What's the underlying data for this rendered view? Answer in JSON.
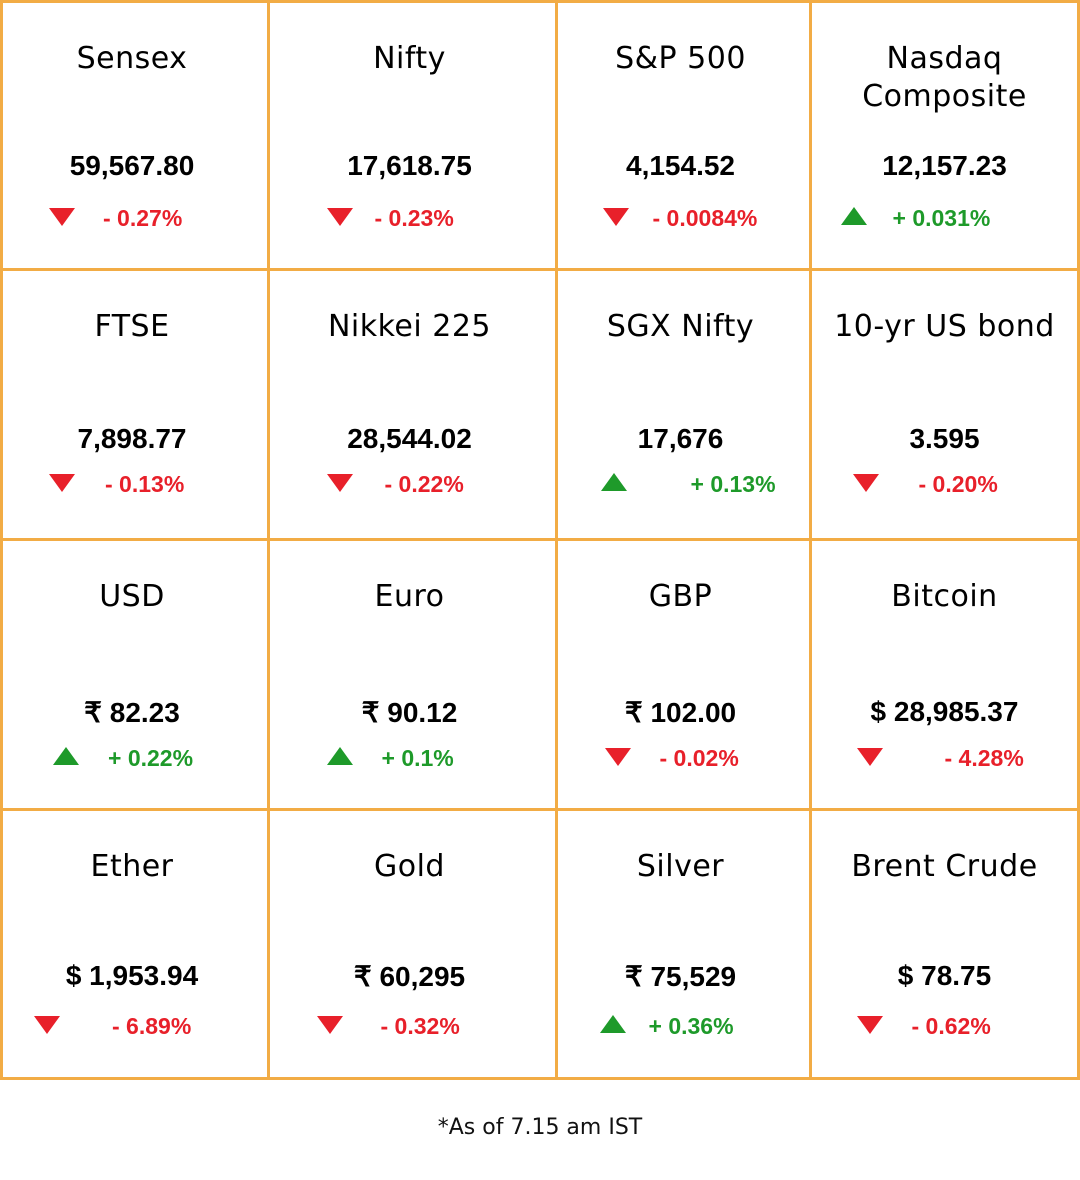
{
  "cells": [
    {
      "name": "Sensex",
      "price": "59,567.80",
      "change": "- 0.27%",
      "dir": "down"
    },
    {
      "name": "Nifty",
      "price": "17,618.75",
      "change": "- 0.23%",
      "dir": "down"
    },
    {
      "name": "S&P 500",
      "price": "4,154.52",
      "change": "- 0.0084%",
      "dir": "down"
    },
    {
      "name": "Nasdaq Composite",
      "price": "12,157.23",
      "change": "+ 0.031%",
      "dir": "up"
    },
    {
      "name": "FTSE",
      "price": "7,898.77",
      "change": "- 0.13%",
      "dir": "down"
    },
    {
      "name": "Nikkei 225",
      "price": "28,544.02",
      "change": "- 0.22%",
      "dir": "down"
    },
    {
      "name": "SGX Nifty",
      "price": "17,676",
      "change": "+ 0.13%",
      "dir": "up"
    },
    {
      "name": "10-yr US bond",
      "price": "3.595",
      "change": "- 0.20%",
      "dir": "down"
    },
    {
      "name": "USD",
      "price": "₹ 82.23",
      "change": "+ 0.22%",
      "dir": "up"
    },
    {
      "name": "Euro",
      "price": "₹ 90.12",
      "change": "+ 0.1%",
      "dir": "up"
    },
    {
      "name": "GBP",
      "price": "₹ 102.00",
      "change": "- 0.02%",
      "dir": "down"
    },
    {
      "name": "Bitcoin",
      "price": "$ 28,985.37",
      "change": "- 4.28%",
      "dir": "down"
    },
    {
      "name": "Ether",
      "price": "$ 1,953.94",
      "change": "- 6.89%",
      "dir": "down"
    },
    {
      "name": "Gold",
      "price": "₹ 60,295",
      "change": "- 0.32%",
      "dir": "down"
    },
    {
      "name": "Silver",
      "price": "₹ 75,529",
      "change": "+ 0.36%",
      "dir": "up"
    },
    {
      "name": "Brent Crude",
      "price": "$ 78.75",
      "change": "- 0.62%",
      "dir": "down"
    }
  ],
  "colors": {
    "border": "#f2ac45",
    "down": "#e8202a",
    "up": "#1e9a2a"
  },
  "footer": "*As of 7.15 am IST"
}
